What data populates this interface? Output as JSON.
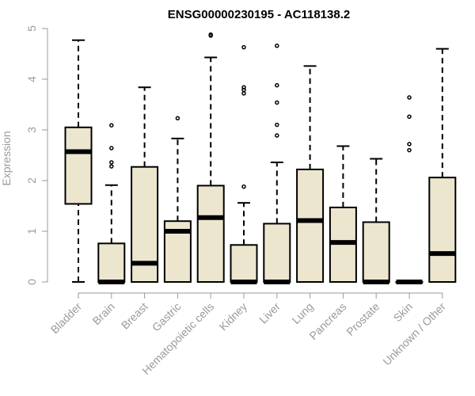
{
  "chart_data": {
    "type": "boxplot",
    "title": "ENSG00000230195 - AC118138.2",
    "xlabel": "",
    "ylabel": "Expression",
    "ylim": [
      0,
      5
    ],
    "yticks": [
      0,
      1,
      2,
      3,
      4,
      5
    ],
    "categories": [
      "Bladder",
      "Brain",
      "Breast",
      "Gastric",
      "Hematopoietic cells",
      "Kidney",
      "Liver",
      "Lung",
      "Pancreas",
      "Prostate",
      "Skin",
      "Unknown / Other"
    ],
    "boxes": [
      {
        "min": 0,
        "q1": 1.54,
        "median": 2.57,
        "q3": 3.05,
        "max": 4.77,
        "outliers": []
      },
      {
        "min": 0,
        "q1": 0,
        "median": 0,
        "q3": 0.76,
        "max": 1.91,
        "outliers": [
          2.28,
          2.36,
          2.64,
          3.09
        ]
      },
      {
        "min": 0,
        "q1": 0,
        "median": 0.37,
        "q3": 2.27,
        "max": 3.84,
        "outliers": []
      },
      {
        "min": 0,
        "q1": 0,
        "median": 1.0,
        "q3": 1.2,
        "max": 2.83,
        "outliers": [
          3.23
        ]
      },
      {
        "min": 0,
        "q1": 0,
        "median": 1.27,
        "q3": 1.9,
        "max": 4.43,
        "outliers": [
          4.86,
          4.88
        ]
      },
      {
        "min": 0,
        "q1": 0,
        "median": 0,
        "q3": 0.73,
        "max": 1.56,
        "outliers": [
          1.88,
          3.72,
          3.79,
          3.84,
          4.63
        ]
      },
      {
        "min": 0,
        "q1": 0,
        "median": 0,
        "q3": 1.15,
        "max": 2.36,
        "outliers": [
          2.89,
          3.1,
          3.54,
          3.88,
          4.66
        ]
      },
      {
        "min": 0,
        "q1": 0,
        "median": 1.21,
        "q3": 2.22,
        "max": 4.26,
        "outliers": []
      },
      {
        "min": 0,
        "q1": 0,
        "median": 0.78,
        "q3": 1.47,
        "max": 2.68,
        "outliers": []
      },
      {
        "min": 0,
        "q1": 0,
        "median": 0,
        "q3": 1.18,
        "max": 2.43,
        "outliers": []
      },
      {
        "min": 0,
        "q1": 0,
        "median": 0,
        "q3": 0,
        "max": 0,
        "outliers": [
          2.6,
          2.72,
          3.26,
          3.64
        ]
      },
      {
        "min": 0,
        "q1": 0,
        "median": 0.56,
        "q3": 2.06,
        "max": 4.6,
        "outliers": []
      }
    ],
    "colors": {
      "box_fill": "#ede6cf",
      "stroke": "#000000",
      "axis": "#9a9a9a",
      "title": "#000000"
    },
    "grid": false
  }
}
